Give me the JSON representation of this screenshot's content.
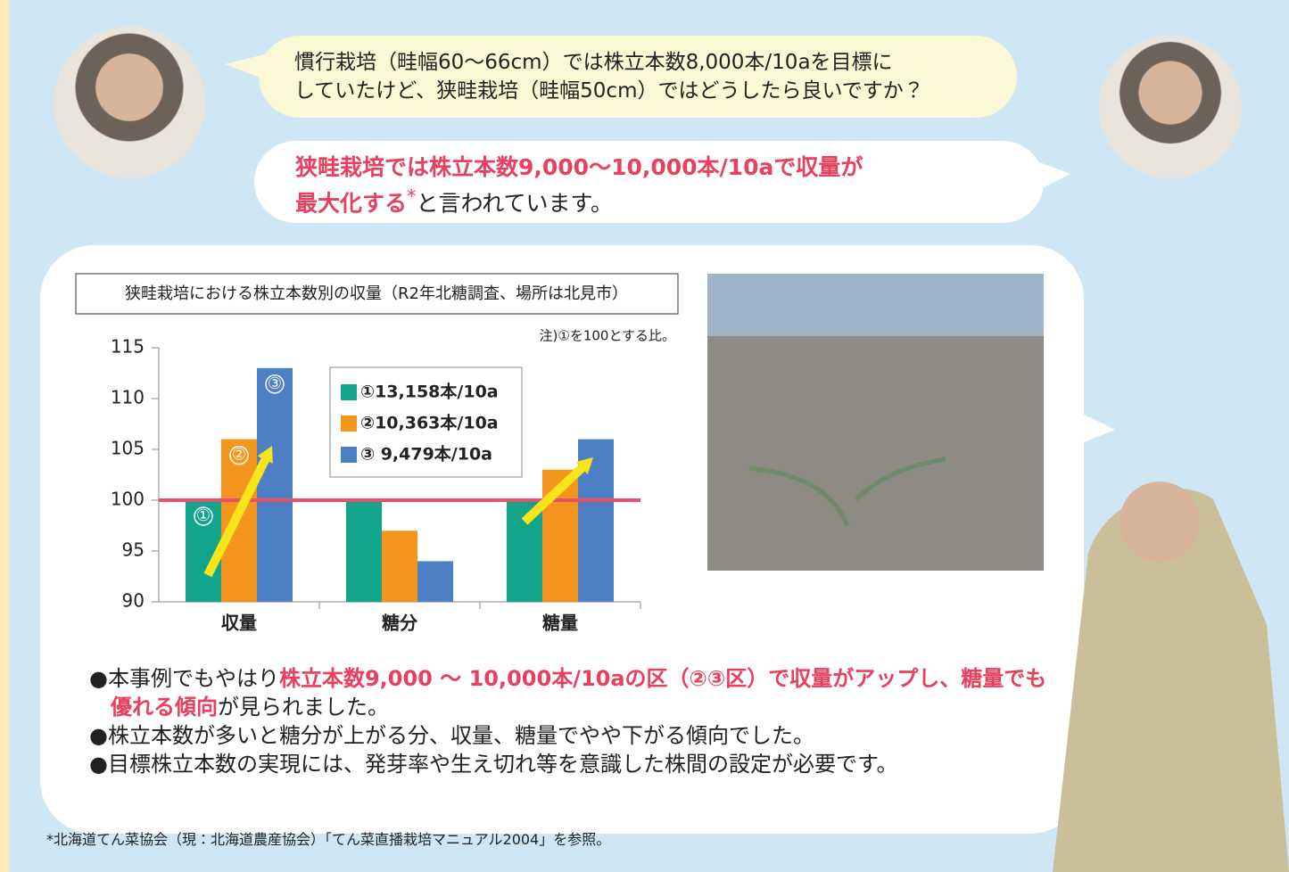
{
  "dialogue": {
    "question": [
      "慣行栽培（畦幅60〜66cm）では株立本数8,000本/10aを目標に",
      "していたけど、狭畦栽培（畦幅50cm）ではどうしたら良いですか？"
    ],
    "answer": [
      "狭畦栽培では株立本数9,000〜10,000本/10aで収量が",
      "最大化する",
      "*",
      "と言われています。"
    ]
  },
  "chart_data": {
    "type": "bar",
    "title": "狭畦栽培における株立本数別の収量（R2年北糖調査、場所は北見市）",
    "note": "注)①を100とする比。",
    "categories": [
      "収量",
      "糖分",
      "糖量"
    ],
    "series": [
      {
        "name": "①13,158本/10a",
        "color": "#12a58c",
        "values": [
          100,
          100,
          100
        ]
      },
      {
        "name": "②10,363本/10a",
        "color": "#f4961e",
        "values": [
          106,
          97,
          103
        ]
      },
      {
        "name": "③ 9,479本/10a",
        "color": "#4d7fc4",
        "values": [
          113,
          94,
          106
        ]
      }
    ],
    "bar_labels": [
      "①",
      "②",
      "③"
    ],
    "reference_line": 100,
    "reference_color": "#e8506a",
    "ylim": [
      90,
      115
    ],
    "yticks": [
      90,
      95,
      100,
      105,
      110,
      115
    ],
    "grid": false
  },
  "bullets": [
    [
      "●本事例でもやはり",
      "株立本数9,000 〜 10,000本/10aの区（②③区）で収量がアップし、糖量でも優れる傾向",
      "が見られました。"
    ],
    [
      "●株立本数が多いと糖分が上がる分、収量、糖量でやや下がる傾向でした。"
    ],
    [
      "●目標株立本数の実現には、発芽率や生え切れ等を意識した株間の設定が必要です。"
    ]
  ],
  "footnote": "*北海道てん菜協会（現：北海道農産協会）「てん菜直播栽培マニュアル2004」を参照。"
}
